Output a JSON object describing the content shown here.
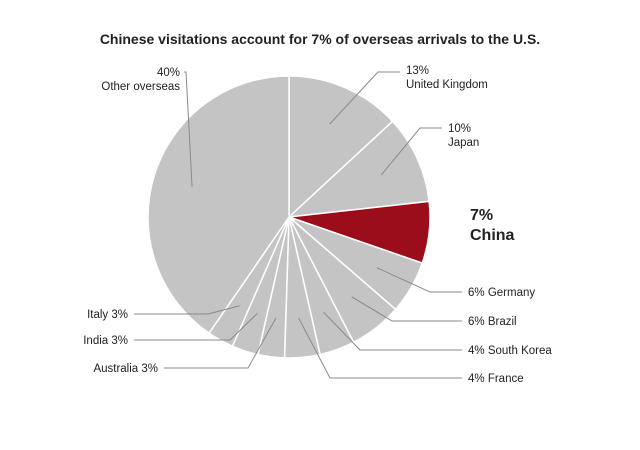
{
  "chart_data": {
    "type": "pie",
    "title": "Chinese visitations account for 7% of overseas arrivals to the U.S.",
    "unit": "%",
    "slices": [
      {
        "name": "United Kingdom",
        "value": 13,
        "label_line1": "13%",
        "label_line2": "United Kingdom"
      },
      {
        "name": "Japan",
        "value": 10,
        "label_line1": "10%",
        "label_line2": "Japan"
      },
      {
        "name": "China",
        "value": 7,
        "label_line1": "7%",
        "label_line2": "China",
        "highlight": true
      },
      {
        "name": "Germany",
        "value": 6,
        "label": "6% Germany"
      },
      {
        "name": "Brazil",
        "value": 6,
        "label": "6% Brazil"
      },
      {
        "name": "South Korea",
        "value": 4,
        "label": "4% South Korea"
      },
      {
        "name": "France",
        "value": 4,
        "label": "4% France"
      },
      {
        "name": "Australia",
        "value": 3,
        "label": "Australia 3%"
      },
      {
        "name": "India",
        "value": 3,
        "label": "India 3%"
      },
      {
        "name": "Italy",
        "value": 3,
        "label": "Italy 3%"
      },
      {
        "name": "Other overseas",
        "value": 40,
        "label_line1": "40%",
        "label_line2": "Other overseas"
      }
    ],
    "colors": {
      "default": "#c4c4c4",
      "highlight": "#9b0d1a",
      "separator": "#ffffff",
      "leader": "#8a8a8a"
    },
    "start_angle_deg": 0,
    "direction": "clockwise"
  }
}
